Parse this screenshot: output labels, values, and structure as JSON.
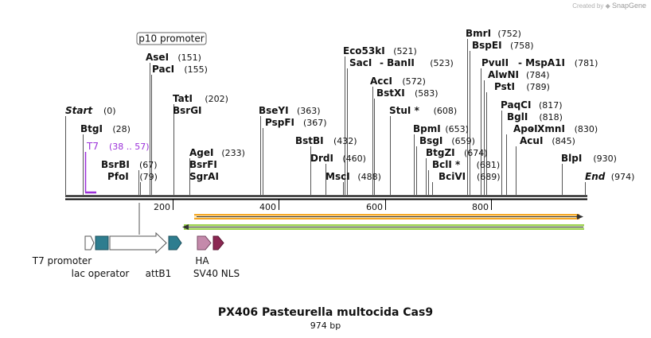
{
  "credit": {
    "created_by": "Created by",
    "brand": "SnapGene"
  },
  "title": "PX406 Pasteurella multocida Cas9",
  "length_label": "974 bp",
  "ruler_ticks": [
    "200",
    "400",
    "600",
    "800"
  ],
  "sites": [
    {
      "name": "Start",
      "pos": "(0)"
    },
    {
      "name": "BtgI",
      "pos": "(28)"
    },
    {
      "name": "T7",
      "pos": "(38 .. 57)"
    },
    {
      "name": "BsrBI",
      "pos": "(67)"
    },
    {
      "name": "PfoI",
      "pos": "(79)"
    },
    {
      "name": "AseI",
      "pos": "(151)"
    },
    {
      "name": "PacI",
      "pos": "(155)"
    },
    {
      "name": "TatI",
      "pos": "(202)"
    },
    {
      "name": "BsrGI",
      "pos": ""
    },
    {
      "name": "AgeI",
      "pos": "(233)"
    },
    {
      "name": "BsrFI",
      "pos": ""
    },
    {
      "name": "SgrAI",
      "pos": ""
    },
    {
      "name": "BseYI",
      "pos": "(363)"
    },
    {
      "name": "PspFI",
      "pos": "(367)"
    },
    {
      "name": "BstBI",
      "pos": "(432)"
    },
    {
      "name": "DrdI",
      "pos": "(460)"
    },
    {
      "name": "MscI",
      "pos": "(488)"
    },
    {
      "name": "Eco53kI",
      "pos": "(521)"
    },
    {
      "name": "SacI",
      "pos": ""
    },
    {
      "name": "- BanII",
      "pos": "(523)"
    },
    {
      "name": "AccI",
      "pos": "(572)"
    },
    {
      "name": "BstXI",
      "pos": "(583)"
    },
    {
      "name": "StuI *",
      "pos": "(608)"
    },
    {
      "name": "BpmI",
      "pos": "(653)"
    },
    {
      "name": "BsgI",
      "pos": "(659)"
    },
    {
      "name": "BtgZI",
      "pos": "(674)"
    },
    {
      "name": "BclI *",
      "pos": "(681)"
    },
    {
      "name": "BciVI",
      "pos": "(689)"
    },
    {
      "name": "BmrI",
      "pos": "(752)"
    },
    {
      "name": "BspEI",
      "pos": "(758)"
    },
    {
      "name": "PvuII",
      "pos": ""
    },
    {
      "name": "- MspA1I",
      "pos": "(781)"
    },
    {
      "name": "AlwNI",
      "pos": "(784)"
    },
    {
      "name": "PstI",
      "pos": "(789)"
    },
    {
      "name": "PaqCI",
      "pos": "(817)"
    },
    {
      "name": "BglI",
      "pos": "(818)"
    },
    {
      "name": "ApoI",
      "pos": ""
    },
    {
      "name": "- XmnI",
      "pos": "(830)"
    },
    {
      "name": "AcuI",
      "pos": "(845)"
    },
    {
      "name": "BlpI",
      "pos": "(930)"
    },
    {
      "name": "End",
      "pos": "(974)"
    }
  ],
  "features": [
    {
      "label": "p10 promoter"
    },
    {
      "label": "T7 promoter"
    },
    {
      "label": "lac operator"
    },
    {
      "label": "attB1"
    },
    {
      "label": "HA"
    },
    {
      "label": "SV40 NLS"
    }
  ],
  "colors": {
    "backbone": "#000000",
    "t7_primer": "#9b30d9",
    "lac_operator": "#2e7d8f",
    "attb1": "#2e7d8f",
    "ha": "#c48aab",
    "sv40_nls": "#8b2752",
    "orange_arrow": "#f5a623",
    "green_arrow": "#9ad14b"
  }
}
